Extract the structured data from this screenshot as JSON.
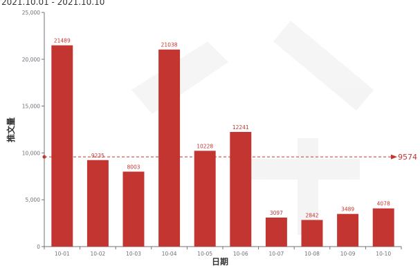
{
  "chart_data": {
    "type": "bar",
    "title": "2021.10.01 - 2021.10.10",
    "xlabel": "日期",
    "ylabel": "推文量",
    "categories": [
      "10-01",
      "10-02",
      "10-03",
      "10-04",
      "10-05",
      "10-06",
      "10-07",
      "10-08",
      "10-09",
      "10-10"
    ],
    "values": [
      21489,
      9235,
      8003,
      21038,
      10228,
      12241,
      3097,
      2842,
      3489,
      4078
    ],
    "ylim": [
      0,
      25000
    ],
    "yticks": [
      0,
      5000,
      10000,
      15000,
      20000,
      25000
    ],
    "ytick_labels": [
      "0",
      "5,000",
      "10,000",
      "15,000",
      "20,000",
      "25,000"
    ],
    "average_line": {
      "value": 9574,
      "label": "9574"
    },
    "bar_color": "#c23531",
    "grid": false
  }
}
